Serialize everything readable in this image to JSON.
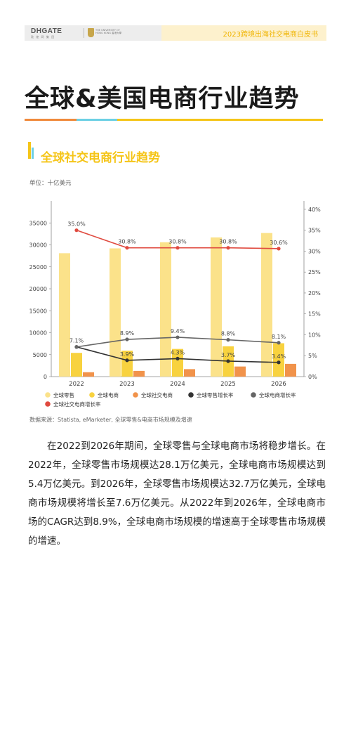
{
  "header": {
    "logo_dhgate": "DHGATE",
    "logo_dhgate_sub": "敦 煌 网 集 团",
    "logo_hku": "THE UNIVERSITY OF HONG KONG 香港大學",
    "title": "2023跨境出海社交电商白皮书"
  },
  "page_title": "全球&美国电商行业趋势",
  "section_title": "全球社交电商行业趋势",
  "unit": "单位：十亿美元",
  "source": "数据来源：Statista, eMarketer, 全球零售&电商市场规模及增速",
  "paragraph": "在2022到2026年期间，全球零售与全球电商市场将稳步增长。在2022年，全球零售市场规模达28.1万亿美元，全球电商市场规模达到5.4万亿美元。到2026年，全球零售市场规模达32.7万亿美元，全球电商市场规模将增长至7.6万亿美元。从2022年到2026年，全球电商市场的CAGR达到8.9%，全球电商市场规模的增速高于全球零售市场规模的增速。",
  "colors": {
    "retail": "#fbe28a",
    "ecommerce": "#f8d23f",
    "social": "#f1934b",
    "retail_growth": "#333333",
    "ecom_growth": "#666666",
    "social_growth": "#e04a3f",
    "accent_yellow": "#f5c518",
    "accent_orange": "#f08a3c",
    "accent_cyan": "#6dd0e4"
  },
  "chart_data": {
    "type": "bar",
    "categories": [
      "2022",
      "2023",
      "2024",
      "2025",
      "2026"
    ],
    "ylim": [
      0,
      40000
    ],
    "y_ticks": [
      "0",
      "5000",
      "10000",
      "15000",
      "20000",
      "25000",
      "30000",
      "35000"
    ],
    "y2lim": [
      0,
      0.42
    ],
    "y2_ticks": [
      "0%",
      "5%",
      "10%",
      "15%",
      "20%",
      "25%",
      "30%",
      "35%",
      "40%"
    ],
    "series": [
      {
        "name": "全球零售",
        "kind": "bar",
        "axis": "left",
        "values": [
          28100,
          29200,
          30600,
          31700,
          32700
        ]
      },
      {
        "name": "全球电商",
        "kind": "bar",
        "axis": "left",
        "values": [
          5400,
          5900,
          6300,
          6900,
          7600
        ]
      },
      {
        "name": "全球社交电商",
        "kind": "bar",
        "axis": "left",
        "values": [
          1000,
          1300,
          1700,
          2300,
          2900
        ]
      },
      {
        "name": "全球零售增长率",
        "kind": "line",
        "axis": "right",
        "values": [
          0.071,
          0.039,
          0.043,
          0.037,
          0.034
        ],
        "labels": [
          "",
          "3.9%",
          "4.3%",
          "3.7%",
          "3.4%"
        ]
      },
      {
        "name": "全球电商增长率",
        "kind": "line",
        "axis": "right",
        "values": [
          0.071,
          0.089,
          0.094,
          0.088,
          0.081
        ],
        "labels": [
          "7.1%",
          "8.9%",
          "9.4%",
          "8.8%",
          "8.1%"
        ]
      },
      {
        "name": "全球社交电商增长率",
        "kind": "line",
        "axis": "right",
        "values": [
          0.35,
          0.308,
          0.308,
          0.308,
          0.306
        ],
        "labels": [
          "35.0%",
          "30.8%",
          "30.8%",
          "30.8%",
          "30.6%"
        ]
      }
    ],
    "legend_position": "bottom",
    "grid": false
  }
}
